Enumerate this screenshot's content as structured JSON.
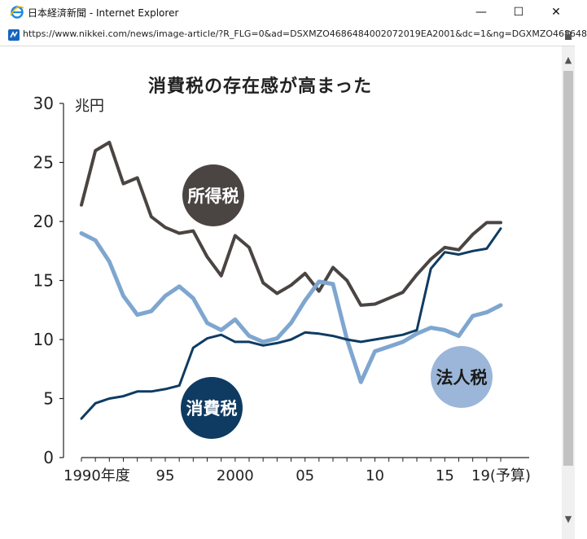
{
  "window": {
    "title": "日本経済新聞 - Internet Explorer",
    "minimize_glyph": "—",
    "maximize_glyph": "☐",
    "close_glyph": "✕",
    "icon": "ie-icon"
  },
  "address": {
    "url": "https://www.nikkei.com/news/image-article/?R_FLG=0&ad=DSXMZO4686484002072019EA2001&dc=1&ng=DGXMZO468648",
    "icon": "page-icon",
    "lock_icon": "lock-icon"
  },
  "chart": {
    "title": "消費税の存在感が高まった",
    "unit_label": "兆円"
  },
  "chart_data": {
    "type": "line",
    "title": "消費税の存在感が高まった",
    "ylabel": "兆円",
    "ylim": [
      0,
      30
    ],
    "yticks": [
      "0",
      "5",
      "10",
      "15",
      "20",
      "25",
      "30"
    ],
    "xticks": [
      {
        "x": 1990,
        "label": "1990年度"
      },
      {
        "x": 1995,
        "label": "95"
      },
      {
        "x": 2000,
        "label": "2000"
      },
      {
        "x": 2005,
        "label": "05"
      },
      {
        "x": 2010,
        "label": "10"
      },
      {
        "x": 2015,
        "label": "15"
      },
      {
        "x": 2019,
        "label": "19(予算)"
      }
    ],
    "x": [
      1989,
      1990,
      1991,
      1992,
      1993,
      1994,
      1995,
      1996,
      1997,
      1998,
      1999,
      2000,
      2001,
      2002,
      2003,
      2004,
      2005,
      2006,
      2007,
      2008,
      2009,
      2010,
      2011,
      2012,
      2013,
      2014,
      2015,
      2016,
      2017,
      2018,
      2019
    ],
    "series": [
      {
        "name": "所得税",
        "color": "#4a4542",
        "values": [
          21.4,
          26.0,
          26.7,
          23.2,
          23.7,
          20.4,
          19.5,
          19.0,
          19.2,
          17.0,
          15.4,
          18.8,
          17.8,
          14.8,
          13.9,
          14.6,
          15.6,
          14.1,
          16.1,
          15.0,
          12.9,
          13.0,
          13.5,
          14.0,
          15.5,
          16.8,
          17.8,
          17.6,
          18.9,
          19.9,
          19.9
        ]
      },
      {
        "name": "法人税",
        "color": "#7ea6cf",
        "values": [
          19.0,
          18.4,
          16.6,
          13.7,
          12.1,
          12.4,
          13.7,
          14.5,
          13.5,
          11.4,
          10.8,
          11.7,
          10.3,
          9.8,
          10.1,
          11.4,
          13.3,
          14.9,
          14.7,
          10.0,
          6.4,
          9.0,
          9.4,
          9.8,
          10.5,
          11.0,
          10.8,
          10.3,
          12.0,
          12.3,
          12.9
        ]
      },
      {
        "name": "消費税",
        "color": "#0f3b62",
        "values": [
          3.3,
          4.6,
          5.0,
          5.2,
          5.6,
          5.6,
          5.8,
          6.1,
          9.3,
          10.1,
          10.4,
          9.8,
          9.8,
          9.5,
          9.7,
          10.0,
          10.6,
          10.5,
          10.3,
          10.0,
          9.8,
          10.0,
          10.2,
          10.4,
          10.8,
          16.0,
          17.4,
          17.2,
          17.5,
          17.7,
          19.4
        ]
      }
    ],
    "legend": "inline labels"
  }
}
